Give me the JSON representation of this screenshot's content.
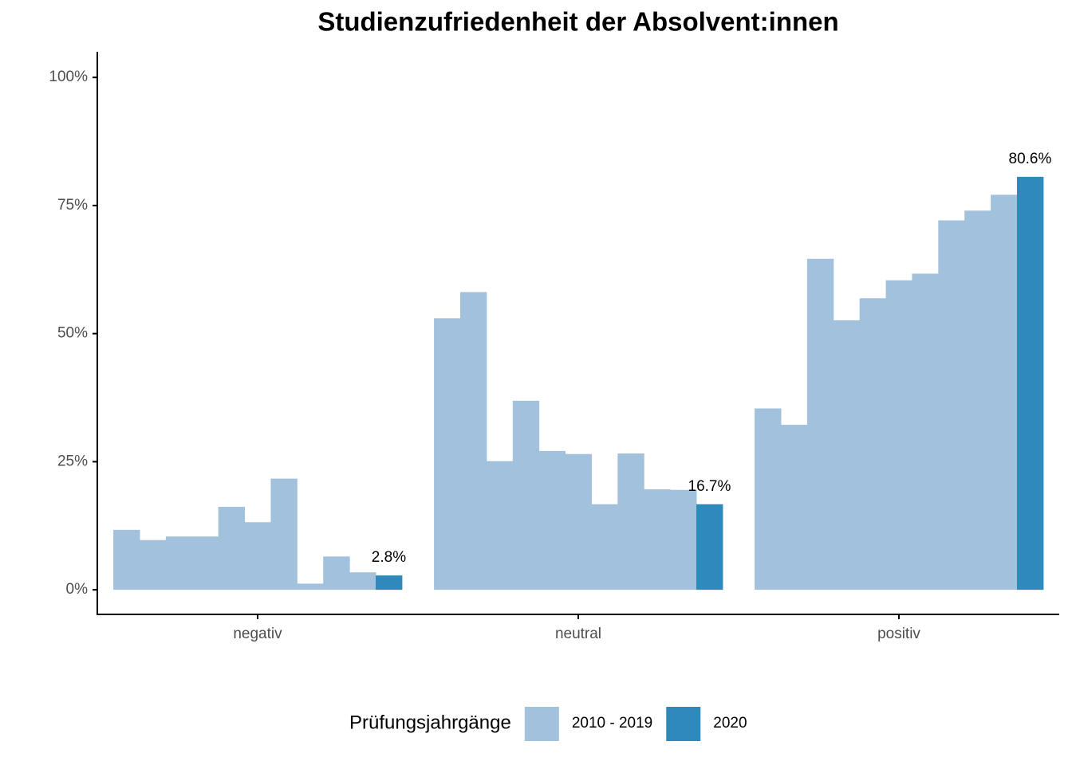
{
  "chart_data": {
    "type": "bar",
    "title": "Studienzufriedenheit der Absolvent:innen",
    "categories": [
      "negativ",
      "neutral",
      "positiv"
    ],
    "series": [
      {
        "name": "2010 - 2019",
        "color": "#a1c1dd",
        "values": [
          [
            11.7,
            9.7,
            10.4,
            10.4,
            16.2,
            13.2,
            21.7,
            1.2,
            6.5,
            3.4
          ],
          [
            53.0,
            58.1,
            25.1,
            36.9,
            27.1,
            26.5,
            16.7,
            26.6,
            19.6,
            19.5
          ],
          [
            35.4,
            32.2,
            64.6,
            52.6,
            56.9,
            60.4,
            61.7,
            72.1,
            74.0,
            77.1
          ]
        ]
      },
      {
        "name": "2020",
        "color": "#2e8aba",
        "values": [
          2.8,
          16.7,
          80.6
        ],
        "value_labels": [
          "2.8%",
          "16.7%",
          "80.6%"
        ]
      }
    ],
    "legend_title": "Prüfungsjahrgänge",
    "ylim": [
      -4.8,
      105
    ],
    "yticks": [
      {
        "value": 0,
        "label": "0%"
      },
      {
        "value": 25,
        "label": "25%"
      },
      {
        "value": 50,
        "label": "50%"
      },
      {
        "value": 75,
        "label": "75%"
      },
      {
        "value": 100,
        "label": "100%"
      }
    ]
  }
}
